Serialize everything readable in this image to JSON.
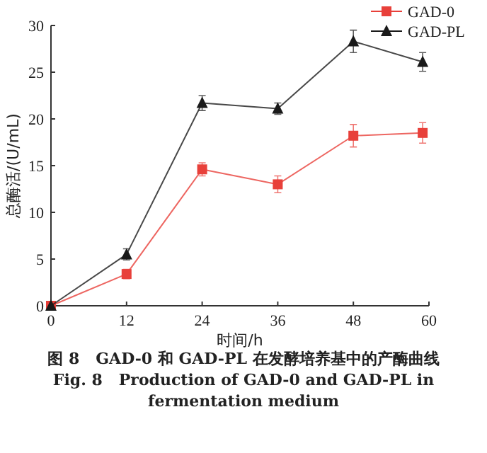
{
  "chart_data": {
    "type": "line",
    "title": "图 8   GAD-0 和 GAD-PL 在发酵培养基中的产酶曲线",
    "subtitle": "Fig. 8   Production of GAD-0 and GAD-PL in fermentation medium",
    "xlabel": "时间/h",
    "ylabel": "总酶活/(U/mL)",
    "x": [
      0,
      12,
      24,
      36,
      48,
      59
    ],
    "series": [
      {
        "name": "GAD-0",
        "color": "#e8403a",
        "marker": "square",
        "values": [
          0,
          3.4,
          14.6,
          13.0,
          18.2,
          18.5
        ],
        "errors": [
          null,
          0.5,
          0.7,
          0.9,
          1.2,
          1.1
        ]
      },
      {
        "name": "GAD-PL",
        "color": "#1a1a1a",
        "marker": "triangle",
        "values": [
          0,
          5.5,
          21.7,
          21.1,
          28.3,
          26.1
        ],
        "errors": [
          null,
          0.6,
          0.8,
          0.6,
          1.2,
          1.0
        ]
      }
    ],
    "xlim": [
      0,
      60
    ],
    "xticks": [
      0,
      12,
      24,
      36,
      48,
      60
    ],
    "ylim": [
      0,
      30
    ],
    "yticks": [
      0,
      5,
      10,
      15,
      20,
      25,
      30
    ],
    "legend": "top right",
    "line_style": "solid",
    "grid": false
  }
}
